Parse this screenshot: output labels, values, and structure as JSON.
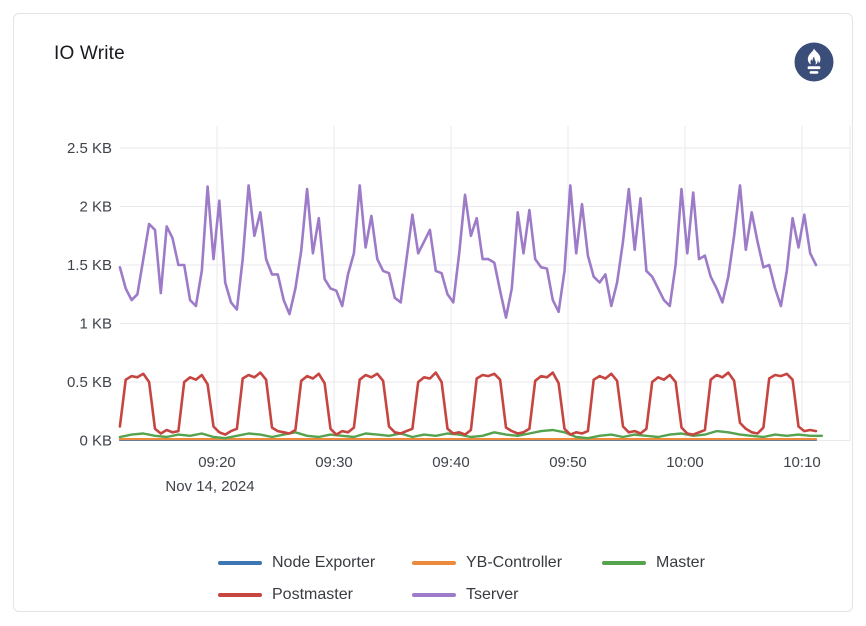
{
  "panel": {
    "title": "IO Write"
  },
  "icons": {
    "datasource": "prometheus-logo"
  },
  "colors": {
    "panel_border": "#e2e4e8",
    "grid": "#e9eaec",
    "axis_text": "#3f434a",
    "title_text": "#17191e",
    "legend_text": "#383b40",
    "prometheus_navy": "#3b4d79",
    "prometheus_flame": "#ffffff",
    "node_exporter": "#3d74b2",
    "yb_controller": "#ee8a3c",
    "master": "#55a24f",
    "postmaster": "#c64540",
    "tserver": "#9d7bc8"
  },
  "chart_data": {
    "type": "line",
    "title": "IO Write",
    "unit": "KB",
    "grid": "on",
    "legend_position": "bottom",
    "x_axis": {
      "date_label": "Nov 14, 2024",
      "ticks": [
        {
          "label": "09:20",
          "minute": 20
        },
        {
          "label": "09:30",
          "minute": 30
        },
        {
          "label": "09:40",
          "minute": 40
        },
        {
          "label": "09:50",
          "minute": 50
        },
        {
          "label": "10:00",
          "minute": 60
        },
        {
          "label": "10:10",
          "minute": 70
        }
      ],
      "data_start_minute": 11.7,
      "domain_end_minute": 74
    },
    "y_axis": {
      "range": [
        0,
        2.7
      ],
      "ticks": [
        {
          "label": "0 KB",
          "value": 0
        },
        {
          "label": "0.5 KB",
          "value": 0.5
        },
        {
          "label": "1 KB",
          "value": 1
        },
        {
          "label": "1.5 KB",
          "value": 1.5
        },
        {
          "label": "2 KB",
          "value": 2
        },
        {
          "label": "2.5 KB",
          "value": 2.5
        }
      ]
    },
    "series": [
      {
        "name": "Node Exporter",
        "color": "#3d74b2",
        "start_minute": 11.7,
        "step_minute": 59.5,
        "values": [
          0.004,
          0.004
        ]
      },
      {
        "name": "YB-Controller",
        "color": "#ee8a3c",
        "start_minute": 11.7,
        "step_minute": 59.5,
        "values": [
          0.012,
          0.012
        ]
      },
      {
        "name": "Master",
        "color": "#55a24f",
        "start_minute": 11.7,
        "step_minute": 1,
        "values": [
          0.03,
          0.05,
          0.06,
          0.04,
          0.03,
          0.05,
          0.04,
          0.06,
          0.03,
          0.02,
          0.04,
          0.06,
          0.05,
          0.03,
          0.05,
          0.07,
          0.04,
          0.03,
          0.05,
          0.04,
          0.03,
          0.06,
          0.05,
          0.04,
          0.06,
          0.03,
          0.05,
          0.04,
          0.06,
          0.05,
          0.03,
          0.04,
          0.07,
          0.05,
          0.04,
          0.06,
          0.08,
          0.09,
          0.07,
          0.03,
          0.02,
          0.04,
          0.05,
          0.03,
          0.05,
          0.04,
          0.03,
          0.05,
          0.06,
          0.04,
          0.05,
          0.08,
          0.07,
          0.05,
          0.04,
          0.03,
          0.05,
          0.04,
          0.05,
          0.04,
          0.04
        ]
      },
      {
        "name": "Postmaster",
        "color": "#c64540",
        "start_minute": 11.7,
        "step_minute": 0.5,
        "values": [
          0.12,
          0.52,
          0.55,
          0.54,
          0.57,
          0.5,
          0.1,
          0.06,
          0.09,
          0.07,
          0.08,
          0.5,
          0.54,
          0.52,
          0.56,
          0.48,
          0.12,
          0.07,
          0.05,
          0.08,
          0.1,
          0.53,
          0.56,
          0.54,
          0.58,
          0.52,
          0.11,
          0.08,
          0.07,
          0.06,
          0.09,
          0.51,
          0.55,
          0.53,
          0.57,
          0.49,
          0.1,
          0.05,
          0.08,
          0.07,
          0.11,
          0.52,
          0.56,
          0.54,
          0.57,
          0.51,
          0.12,
          0.07,
          0.06,
          0.08,
          0.1,
          0.5,
          0.54,
          0.53,
          0.58,
          0.5,
          0.1,
          0.06,
          0.07,
          0.05,
          0.09,
          0.53,
          0.56,
          0.55,
          0.57,
          0.52,
          0.11,
          0.08,
          0.06,
          0.07,
          0.1,
          0.51,
          0.55,
          0.54,
          0.58,
          0.49,
          0.1,
          0.05,
          0.07,
          0.06,
          0.08,
          0.52,
          0.55,
          0.53,
          0.57,
          0.51,
          0.12,
          0.07,
          0.08,
          0.06,
          0.1,
          0.5,
          0.54,
          0.52,
          0.56,
          0.5,
          0.11,
          0.06,
          0.05,
          0.07,
          0.09,
          0.52,
          0.56,
          0.54,
          0.58,
          0.51,
          0.15,
          0.1,
          0.07,
          0.06,
          0.11,
          0.53,
          0.56,
          0.55,
          0.57,
          0.52,
          0.12,
          0.08,
          0.09,
          0.08
        ]
      },
      {
        "name": "Tserver",
        "color": "#9d7bc8",
        "start_minute": 11.7,
        "step_minute": 0.5,
        "values": [
          1.48,
          1.3,
          1.2,
          1.25,
          1.55,
          1.85,
          1.8,
          1.26,
          1.83,
          1.73,
          1.5,
          1.5,
          1.2,
          1.15,
          1.45,
          2.17,
          1.55,
          2.05,
          1.35,
          1.18,
          1.12,
          1.55,
          2.18,
          1.75,
          1.95,
          1.55,
          1.42,
          1.42,
          1.2,
          1.08,
          1.3,
          1.62,
          2.15,
          1.6,
          1.9,
          1.38,
          1.3,
          1.28,
          1.15,
          1.42,
          1.6,
          2.18,
          1.65,
          1.92,
          1.55,
          1.45,
          1.43,
          1.22,
          1.18,
          1.55,
          1.93,
          1.6,
          1.7,
          1.8,
          1.45,
          1.43,
          1.25,
          1.18,
          1.6,
          2.1,
          1.75,
          1.9,
          1.55,
          1.55,
          1.52,
          1.28,
          1.05,
          1.3,
          1.95,
          1.6,
          1.97,
          1.55,
          1.48,
          1.47,
          1.2,
          1.1,
          1.45,
          2.18,
          1.6,
          2.02,
          1.58,
          1.4,
          1.35,
          1.42,
          1.15,
          1.35,
          1.7,
          2.15,
          1.63,
          2.07,
          1.45,
          1.4,
          1.3,
          1.2,
          1.15,
          1.5,
          2.15,
          1.6,
          2.12,
          1.55,
          1.58,
          1.4,
          1.3,
          1.18,
          1.4,
          1.75,
          2.18,
          1.63,
          1.95,
          1.7,
          1.48,
          1.5,
          1.3,
          1.15,
          1.45,
          1.9,
          1.65,
          1.93,
          1.6,
          1.5
        ]
      }
    ]
  }
}
